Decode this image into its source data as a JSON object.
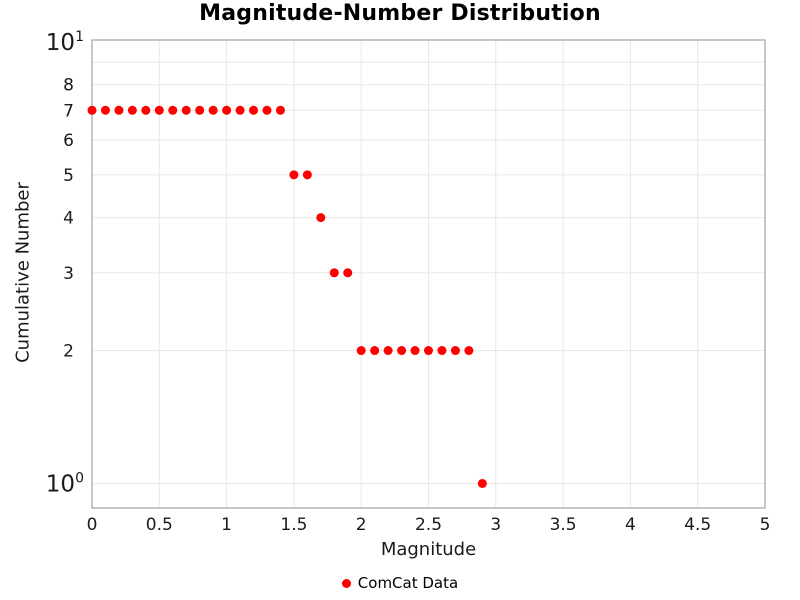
{
  "chart_data": {
    "type": "scatter",
    "title": "Magnitude-Number Distribution",
    "xlabel": "Magnitude",
    "ylabel": "Cumulative Number",
    "grid": true,
    "legend": {
      "position": "bottom-center",
      "entries": [
        {
          "label": "ComCat Data",
          "marker": "dot-icon",
          "color": "#ff0000"
        }
      ]
    },
    "colors": {
      "marker": "#ff0000",
      "gridline": "#e8e8e8",
      "frame": "#a9a9a9",
      "text": "#1a1a1a"
    },
    "x_axis": {
      "scale": "linear",
      "range": [
        0,
        5
      ],
      "ticks": [
        0,
        0.5,
        1,
        1.5,
        2,
        2.5,
        3,
        3.5,
        4,
        4.5,
        5
      ],
      "tick_labels": [
        "0",
        "0.5",
        "1",
        "1.5",
        "2",
        "2.5",
        "3",
        "3.5",
        "4",
        "4.5",
        "5"
      ]
    },
    "y_axis": {
      "scale": "log",
      "range": [
        0.88,
        10.1
      ],
      "ticks": [
        {
          "value": 10,
          "label": "10",
          "exponent": "1"
        },
        {
          "value": 8,
          "label": "8"
        },
        {
          "value": 7,
          "label": "7"
        },
        {
          "value": 6,
          "label": "6"
        },
        {
          "value": 5,
          "label": "5"
        },
        {
          "value": 4,
          "label": "4"
        },
        {
          "value": 3,
          "label": "3"
        },
        {
          "value": 2,
          "label": "2"
        },
        {
          "value": 1,
          "label": "10",
          "exponent": "0"
        }
      ],
      "gridline_values": [
        9,
        8,
        7,
        6,
        5,
        4,
        3,
        2,
        1
      ]
    },
    "series": [
      {
        "name": "ComCat Data",
        "color": "#ff0000",
        "marker_diameter": 9,
        "points": [
          [
            0.0,
            7
          ],
          [
            0.1,
            7
          ],
          [
            0.2,
            7
          ],
          [
            0.3,
            7
          ],
          [
            0.4,
            7
          ],
          [
            0.5,
            7
          ],
          [
            0.6,
            7
          ],
          [
            0.7,
            7
          ],
          [
            0.8,
            7
          ],
          [
            0.9,
            7
          ],
          [
            1.0,
            7
          ],
          [
            1.1,
            7
          ],
          [
            1.2,
            7
          ],
          [
            1.3,
            7
          ],
          [
            1.4,
            7
          ],
          [
            1.5,
            5
          ],
          [
            1.6,
            5
          ],
          [
            1.7,
            4
          ],
          [
            1.8,
            3
          ],
          [
            1.9,
            3
          ],
          [
            2.0,
            2
          ],
          [
            2.1,
            2
          ],
          [
            2.2,
            2
          ],
          [
            2.3,
            2
          ],
          [
            2.4,
            2
          ],
          [
            2.5,
            2
          ],
          [
            2.6,
            2
          ],
          [
            2.7,
            2
          ],
          [
            2.8,
            2
          ],
          [
            2.9,
            1
          ]
        ]
      }
    ]
  }
}
